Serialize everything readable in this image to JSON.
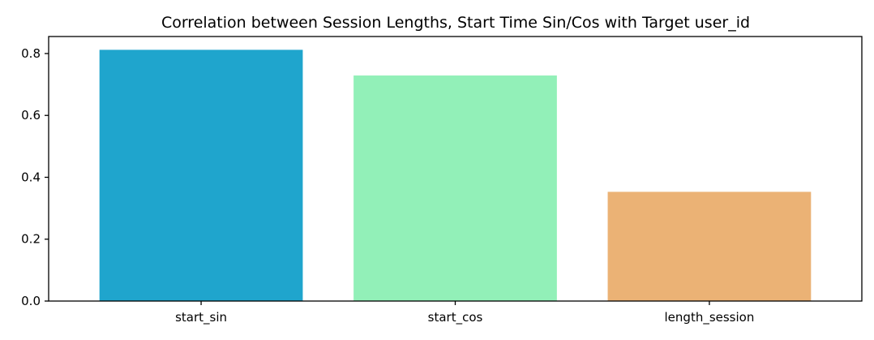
{
  "chart_data": {
    "type": "bar",
    "title": "Correlation between Session Lengths, Start Time Sin/Cos with Target user_id",
    "xlabel": "",
    "ylabel": "",
    "categories": [
      "start_sin",
      "start_cos",
      "length_session"
    ],
    "values": [
      0.812,
      0.729,
      0.353
    ],
    "colors": [
      "#1fa5cd",
      "#92f0b8",
      "#ebb275"
    ],
    "ylim": [
      0,
      0.855
    ],
    "yticks": [
      0.0,
      0.2,
      0.4,
      0.6,
      0.8
    ],
    "ytick_labels": [
      "0.0",
      "0.2",
      "0.4",
      "0.6",
      "0.8"
    ],
    "grid": false,
    "legend": "none"
  }
}
